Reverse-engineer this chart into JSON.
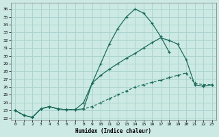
{
  "title": "",
  "xlabel": "Humidex (Indice chaleur)",
  "bg_color": "#cce9e4",
  "grid_color": "#add5cf",
  "line_color": "#1a6b5a",
  "xlim": [
    -0.5,
    23.5
  ],
  "ylim": [
    21.8,
    36.8
  ],
  "xticks": [
    0,
    1,
    2,
    3,
    4,
    5,
    6,
    7,
    8,
    9,
    10,
    11,
    12,
    13,
    14,
    15,
    16,
    17,
    18,
    19,
    20,
    21,
    22,
    23
  ],
  "yticks": [
    22,
    23,
    24,
    25,
    26,
    27,
    28,
    29,
    30,
    31,
    32,
    33,
    34,
    35,
    36
  ],
  "curve1_x": [
    0,
    1,
    2,
    3,
    4,
    5,
    6,
    7,
    8,
    9,
    10,
    11,
    12,
    13,
    14,
    15,
    16,
    17,
    18
  ],
  "curve1_y": [
    23.0,
    22.4,
    22.1,
    23.2,
    23.5,
    23.2,
    23.1,
    23.1,
    23.2,
    26.5,
    29.0,
    31.5,
    33.5,
    35.0,
    36.0,
    35.5,
    34.2,
    32.5,
    30.5
  ],
  "curve2_x": [
    0,
    1,
    2,
    3,
    4,
    5,
    6,
    7,
    8,
    9,
    10,
    11,
    12,
    13,
    14,
    15,
    16,
    17,
    18,
    19,
    20,
    21,
    22,
    23
  ],
  "curve2_y": [
    23.0,
    22.4,
    22.1,
    23.2,
    23.5,
    23.2,
    23.1,
    23.1,
    23.2,
    23.5,
    24.0,
    24.5,
    25.0,
    25.5,
    26.0,
    26.3,
    26.6,
    26.9,
    27.2,
    27.5,
    27.8,
    26.5,
    26.3,
    26.3
  ],
  "curve3_x": [
    0,
    1,
    2,
    3,
    4,
    5,
    6,
    7,
    8,
    9,
    10,
    11,
    12,
    13,
    14,
    15,
    16,
    17,
    18,
    19,
    20,
    21,
    22,
    23
  ],
  "curve3_y": [
    23.0,
    22.4,
    22.1,
    23.2,
    23.5,
    23.2,
    23.1,
    23.1,
    24.0,
    26.5,
    27.5,
    28.3,
    29.0,
    29.7,
    30.3,
    31.0,
    31.7,
    32.3,
    32.0,
    31.5,
    29.5,
    26.3,
    26.1,
    26.3
  ]
}
